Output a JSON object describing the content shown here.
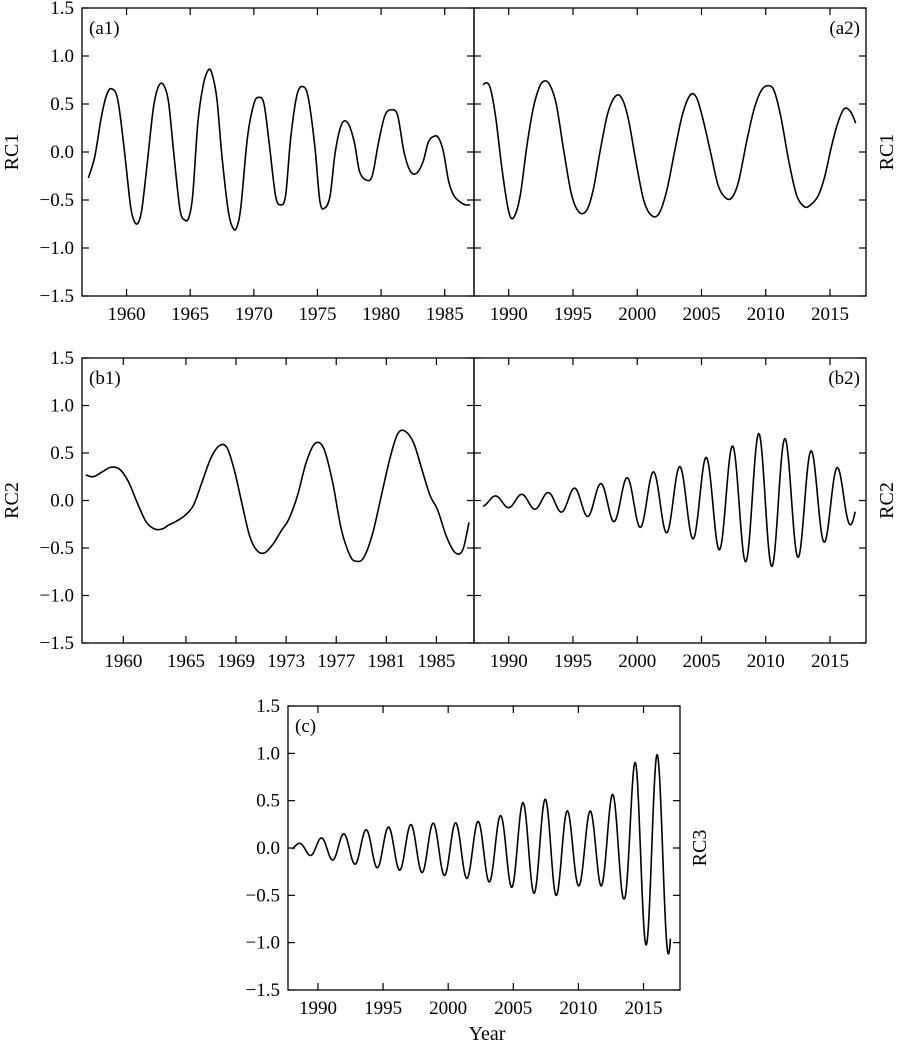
{
  "figure": {
    "shared_xlabel": "Year"
  },
  "chart_data": [
    {
      "id": "a1",
      "type": "line",
      "panel_label": "(a1)",
      "ylabel": "RC1",
      "xlabel": "",
      "xlim": [
        1956.5,
        1987.3
      ],
      "ylim": [
        -1.5,
        1.5
      ],
      "x_ticks": [
        1960,
        1965,
        1970,
        1975,
        1980,
        1985
      ],
      "y_ticks": [
        "1.5",
        "1.0",
        "0.5",
        "0.0",
        "−0.5",
        "−1.0",
        "−1.5"
      ],
      "series": [
        {
          "x": [
            1957.0,
            1957.5,
            1958.0,
            1958.4,
            1958.8,
            1959.3,
            1959.8,
            1960.3,
            1960.6,
            1960.9,
            1961.2,
            1961.6,
            1962.1,
            1962.5,
            1962.9,
            1963.3,
            1963.7,
            1964.2,
            1964.6,
            1964.9,
            1965.2,
            1965.6,
            1966.0,
            1966.4,
            1966.7,
            1967.1,
            1967.5,
            1968.0,
            1968.4,
            1968.7,
            1969.0,
            1969.5,
            1970.0,
            1970.4,
            1970.8,
            1971.2,
            1971.7,
            1972.1,
            1972.5,
            1972.9,
            1973.4,
            1973.9,
            1974.3,
            1974.8,
            1975.2,
            1975.6,
            1976.0,
            1976.4,
            1976.9,
            1977.4,
            1977.9,
            1978.3,
            1978.8,
            1979.3,
            1979.8,
            1980.3,
            1980.8,
            1981.3,
            1981.8,
            1982.3,
            1982.8,
            1983.3,
            1983.7,
            1984.1,
            1984.5,
            1984.9,
            1985.3,
            1985.7,
            1986.2,
            1986.6,
            1987.0
          ],
          "y": [
            -0.27,
            -0.05,
            0.35,
            0.58,
            0.66,
            0.55,
            0.05,
            -0.55,
            -0.72,
            -0.74,
            -0.6,
            -0.15,
            0.45,
            0.68,
            0.7,
            0.52,
            0.0,
            -0.6,
            -0.71,
            -0.68,
            -0.45,
            0.3,
            0.68,
            0.85,
            0.82,
            0.55,
            -0.05,
            -0.62,
            -0.8,
            -0.77,
            -0.55,
            0.15,
            0.5,
            0.57,
            0.5,
            0.1,
            -0.45,
            -0.55,
            -0.45,
            0.15,
            0.6,
            0.68,
            0.55,
            0.05,
            -0.52,
            -0.58,
            -0.45,
            0.0,
            0.29,
            0.3,
            0.1,
            -0.2,
            -0.29,
            -0.25,
            0.1,
            0.38,
            0.44,
            0.38,
            0.0,
            -0.2,
            -0.22,
            -0.1,
            0.1,
            0.16,
            0.15,
            0.0,
            -0.3,
            -0.45,
            -0.52,
            -0.55,
            -0.55
          ]
        }
      ]
    },
    {
      "id": "a2",
      "type": "line",
      "panel_label": "(a2)",
      "ylabel": "RC1",
      "xlabel": "",
      "xlim": [
        1987.3,
        2017.8
      ],
      "ylim": [
        -1.5,
        1.5
      ],
      "x_ticks": [
        1990,
        1995,
        2000,
        2005,
        2010,
        2015
      ],
      "y_ticks": [],
      "series": [
        {
          "x": [
            1988.0,
            1988.3,
            1988.6,
            1989.0,
            1989.5,
            1990.0,
            1990.4,
            1990.9,
            1991.4,
            1991.9,
            1992.4,
            1992.8,
            1993.2,
            1993.7,
            1994.3,
            1994.9,
            1995.5,
            1996.1,
            1996.6,
            1997.1,
            1997.7,
            1998.3,
            1998.8,
            1999.3,
            1999.9,
            2000.5,
            2001.1,
            2001.7,
            2002.3,
            2002.9,
            2003.5,
            2004.1,
            2004.6,
            2005.1,
            2005.7,
            2006.3,
            2006.9,
            2007.4,
            2007.9,
            2008.5,
            2009.1,
            2009.7,
            2010.3,
            2010.7,
            2011.2,
            2011.8,
            2012.4,
            2013.0,
            2013.5,
            2014.1,
            2014.6,
            2015.1,
            2015.6,
            2016.1,
            2016.6,
            2017.0
          ],
          "y": [
            0.7,
            0.72,
            0.65,
            0.35,
            -0.2,
            -0.62,
            -0.68,
            -0.45,
            0.05,
            0.45,
            0.68,
            0.74,
            0.7,
            0.5,
            0.0,
            -0.45,
            -0.63,
            -0.6,
            -0.38,
            0.0,
            0.4,
            0.58,
            0.56,
            0.35,
            -0.1,
            -0.5,
            -0.66,
            -0.64,
            -0.4,
            0.0,
            0.38,
            0.59,
            0.57,
            0.35,
            0.0,
            -0.35,
            -0.48,
            -0.47,
            -0.3,
            0.1,
            0.45,
            0.65,
            0.69,
            0.62,
            0.35,
            -0.1,
            -0.45,
            -0.57,
            -0.55,
            -0.45,
            -0.25,
            0.05,
            0.3,
            0.45,
            0.42,
            0.3
          ]
        }
      ]
    },
    {
      "id": "b1",
      "type": "line",
      "panel_label": "(b1)",
      "ylabel": "RC2",
      "xlabel": "",
      "xlim": [
        1956.7,
        1988.0
      ],
      "ylim": [
        -1.5,
        1.5
      ],
      "x_ticks": [
        1960,
        1965,
        1969,
        1973,
        1977,
        1981,
        1985
      ],
      "y_ticks": [
        "1.5",
        "1.0",
        "0.5",
        "0.0",
        "−0.5",
        "−1.0",
        "−1.5"
      ],
      "series": [
        {
          "x": [
            1957.0,
            1957.6,
            1958.3,
            1959.0,
            1959.7,
            1960.4,
            1961.1,
            1961.8,
            1962.5,
            1963.1,
            1963.6,
            1964.2,
            1964.9,
            1965.6,
            1966.3,
            1967.0,
            1967.7,
            1968.3,
            1968.9,
            1969.5,
            1970.1,
            1970.7,
            1971.3,
            1972.0,
            1972.6,
            1973.2,
            1973.9,
            1974.6,
            1975.3,
            1976.0,
            1976.7,
            1977.4,
            1978.1,
            1978.6,
            1979.2,
            1979.9,
            1980.6,
            1981.3,
            1981.9,
            1982.5,
            1983.2,
            1983.9,
            1984.5,
            1985.1,
            1985.8,
            1986.5,
            1987.1,
            1987.6
          ],
          "y": [
            0.27,
            0.25,
            0.3,
            0.35,
            0.33,
            0.2,
            -0.02,
            -0.22,
            -0.3,
            -0.3,
            -0.26,
            -0.22,
            -0.16,
            -0.05,
            0.2,
            0.45,
            0.58,
            0.55,
            0.3,
            -0.05,
            -0.38,
            -0.53,
            -0.55,
            -0.45,
            -0.32,
            -0.2,
            0.05,
            0.4,
            0.6,
            0.55,
            0.2,
            -0.3,
            -0.58,
            -0.64,
            -0.6,
            -0.35,
            0.05,
            0.45,
            0.7,
            0.73,
            0.6,
            0.3,
            0.05,
            -0.1,
            -0.38,
            -0.55,
            -0.52,
            -0.23
          ]
        }
      ]
    },
    {
      "id": "b2",
      "type": "line",
      "panel_label": "(b2)",
      "ylabel": "RC2",
      "xlabel": "",
      "xlim": [
        1987.3,
        2017.8
      ],
      "ylim": [
        -1.5,
        1.5
      ],
      "x_ticks": [
        1990,
        1995,
        2000,
        2005,
        2010,
        2015
      ],
      "y_ticks": [],
      "series": [
        {
          "model": "sinusoid",
          "x_start": 1988.0,
          "x_end": 2017.0,
          "period": 2.05,
          "peak_x": 1988.95,
          "amplitude_envelope": {
            "x": [
              1988,
              1993,
              1997,
              2001,
              2004,
              2007,
              2009.5,
              2011,
              2013,
              2015,
              2017
            ],
            "amp": [
              0.05,
              0.09,
              0.18,
              0.3,
              0.38,
              0.55,
              0.71,
              0.68,
              0.57,
              0.4,
              0.22
            ]
          },
          "offset_envelope": {
            "x": [
              1988,
              2017
            ],
            "offset": [
              -0.01,
              0.0
            ]
          }
        }
      ]
    },
    {
      "id": "c",
      "type": "line",
      "panel_label": "(c)",
      "ylabel": "RC3",
      "xlabel": "Year",
      "xlim": [
        1987.7,
        2017.8
      ],
      "ylim": [
        -1.5,
        1.5
      ],
      "x_ticks": [
        1990,
        1995,
        2000,
        2005,
        2010,
        2015
      ],
      "y_ticks": [
        "1.5",
        "1.0",
        "0.5",
        "0.0",
        "−0.5",
        "−1.0",
        "−1.5"
      ],
      "series": [
        {
          "model": "sinusoid",
          "x_start": 1988.0,
          "x_end": 2017.1,
          "period": 1.72,
          "peak_x": 1990.25,
          "amplitude_envelope": {
            "x": [
              1988,
              1990,
              1994,
              1998,
              2002,
              2004,
              2006,
              2008,
              2010,
              2012,
              2013.5,
              2014.5,
              2016,
              2017.1
            ],
            "amp": [
              0.03,
              0.1,
              0.2,
              0.26,
              0.3,
              0.36,
              0.48,
              0.52,
              0.35,
              0.45,
              0.6,
              0.95,
              1.05,
              1.0
            ],
            "offset": [
              0.0,
              0.0,
              0.0,
              0.0,
              -0.03,
              -0.02,
              0.02,
              0.0,
              -0.05,
              0.05,
              0.06,
              0.0,
              -0.06,
              -0.12
            ]
          }
        }
      ]
    }
  ]
}
